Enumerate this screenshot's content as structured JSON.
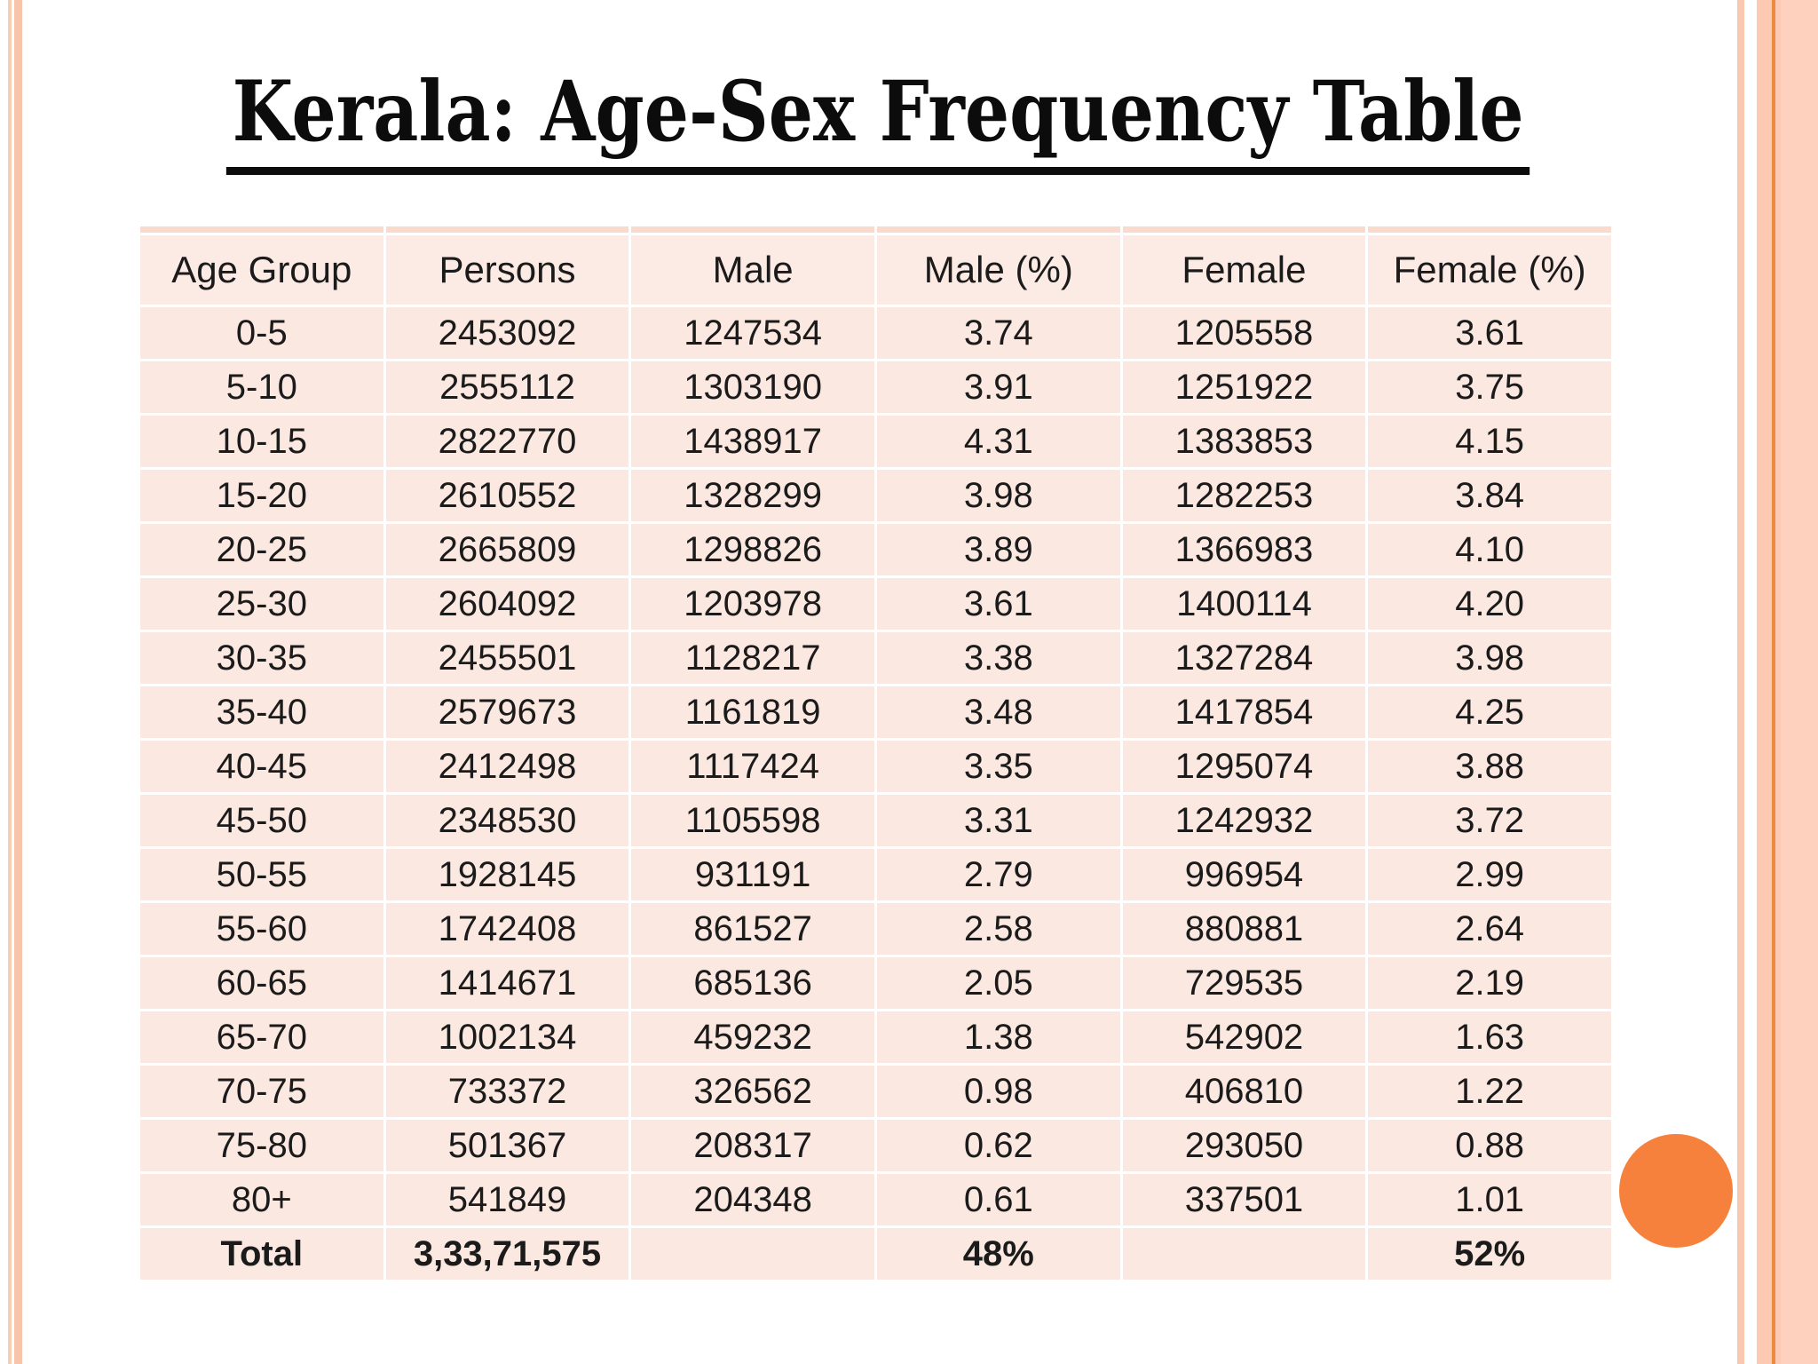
{
  "slide": {
    "title": "Kerala: Age-Sex Frequency Table"
  },
  "table": {
    "columns": [
      "Age Group",
      "Persons",
      "Male",
      "Male (%)",
      "Female",
      "Female (%)"
    ],
    "rows": [
      [
        "0-5",
        "2453092",
        "1247534",
        "3.74",
        "1205558",
        "3.61"
      ],
      [
        "5-10",
        "2555112",
        "1303190",
        "3.91",
        "1251922",
        "3.75"
      ],
      [
        "10-15",
        "2822770",
        "1438917",
        "4.31",
        "1383853",
        "4.15"
      ],
      [
        "15-20",
        "2610552",
        "1328299",
        "3.98",
        "1282253",
        "3.84"
      ],
      [
        "20-25",
        "2665809",
        "1298826",
        "3.89",
        "1366983",
        "4.10"
      ],
      [
        "25-30",
        "2604092",
        "1203978",
        "3.61",
        "1400114",
        "4.20"
      ],
      [
        "30-35",
        "2455501",
        "1128217",
        "3.38",
        "1327284",
        "3.98"
      ],
      [
        "35-40",
        "2579673",
        "1161819",
        "3.48",
        "1417854",
        "4.25"
      ],
      [
        "40-45",
        "2412498",
        "1117424",
        "3.35",
        "1295074",
        "3.88"
      ],
      [
        "45-50",
        "2348530",
        "1105598",
        "3.31",
        "1242932",
        "3.72"
      ],
      [
        "50-55",
        "1928145",
        "931191",
        "2.79",
        "996954",
        "2.99"
      ],
      [
        "55-60",
        "1742408",
        "861527",
        "2.58",
        "880881",
        "2.64"
      ],
      [
        "60-65",
        "1414671",
        "685136",
        "2.05",
        "729535",
        "2.19"
      ],
      [
        "65-70",
        "1002134",
        "459232",
        "1.38",
        "542902",
        "1.63"
      ],
      [
        "70-75",
        "733372",
        "326562",
        "0.98",
        "406810",
        "1.22"
      ],
      [
        "75-80",
        "501367",
        "208317",
        "0.62",
        "293050",
        "0.88"
      ],
      [
        "80+",
        "541849",
        "204348",
        "0.61",
        "337501",
        "1.01"
      ]
    ],
    "total_row": [
      "Total",
      "3,33,71,575",
      "",
      "48%",
      "",
      "52%"
    ]
  },
  "chart_data": {
    "type": "table",
    "title": "Kerala: Age-Sex Frequency Table",
    "columns": [
      "Age Group",
      "Persons",
      "Male",
      "Male (%)",
      "Female",
      "Female (%)"
    ],
    "rows": [
      [
        "0-5",
        2453092,
        1247534,
        3.74,
        1205558,
        3.61
      ],
      [
        "5-10",
        2555112,
        1303190,
        3.91,
        1251922,
        3.75
      ],
      [
        "10-15",
        2822770,
        1438917,
        4.31,
        1383853,
        4.15
      ],
      [
        "15-20",
        2610552,
        1328299,
        3.98,
        1282253,
        3.84
      ],
      [
        "20-25",
        2665809,
        1298826,
        3.89,
        1366983,
        4.1
      ],
      [
        "25-30",
        2604092,
        1203978,
        3.61,
        1400114,
        4.2
      ],
      [
        "30-35",
        2455501,
        1128217,
        3.38,
        1327284,
        3.98
      ],
      [
        "35-40",
        2579673,
        1161819,
        3.48,
        1417854,
        4.25
      ],
      [
        "40-45",
        2412498,
        1117424,
        3.35,
        1295074,
        3.88
      ],
      [
        "45-50",
        2348530,
        1105598,
        3.31,
        1242932,
        3.72
      ],
      [
        "50-55",
        1928145,
        931191,
        2.79,
        996954,
        2.99
      ],
      [
        "55-60",
        1742408,
        861527,
        2.58,
        880881,
        2.64
      ],
      [
        "60-65",
        1414671,
        685136,
        2.05,
        729535,
        2.19
      ],
      [
        "65-70",
        1002134,
        459232,
        1.38,
        542902,
        1.63
      ],
      [
        "70-75",
        733372,
        326562,
        0.98,
        406810,
        1.22
      ],
      [
        "75-80",
        501367,
        208317,
        0.62,
        293050,
        0.88
      ],
      [
        "80+",
        541849,
        204348,
        0.61,
        337501,
        1.01
      ]
    ],
    "total": [
      "Total",
      "3,33,71,575",
      "",
      "48%",
      "",
      "52%"
    ]
  },
  "colors": {
    "cell_background": "#fbe8e0",
    "header_background": "#fcebe4",
    "top_accent_bar": "#f9dacd",
    "side_stripe_peach": "#f8c5ab",
    "right_band": "#fccab3",
    "right_band_line": "#ee8a3f",
    "circle_orange": "#f5813c",
    "title_text": "#0c0c0c"
  }
}
